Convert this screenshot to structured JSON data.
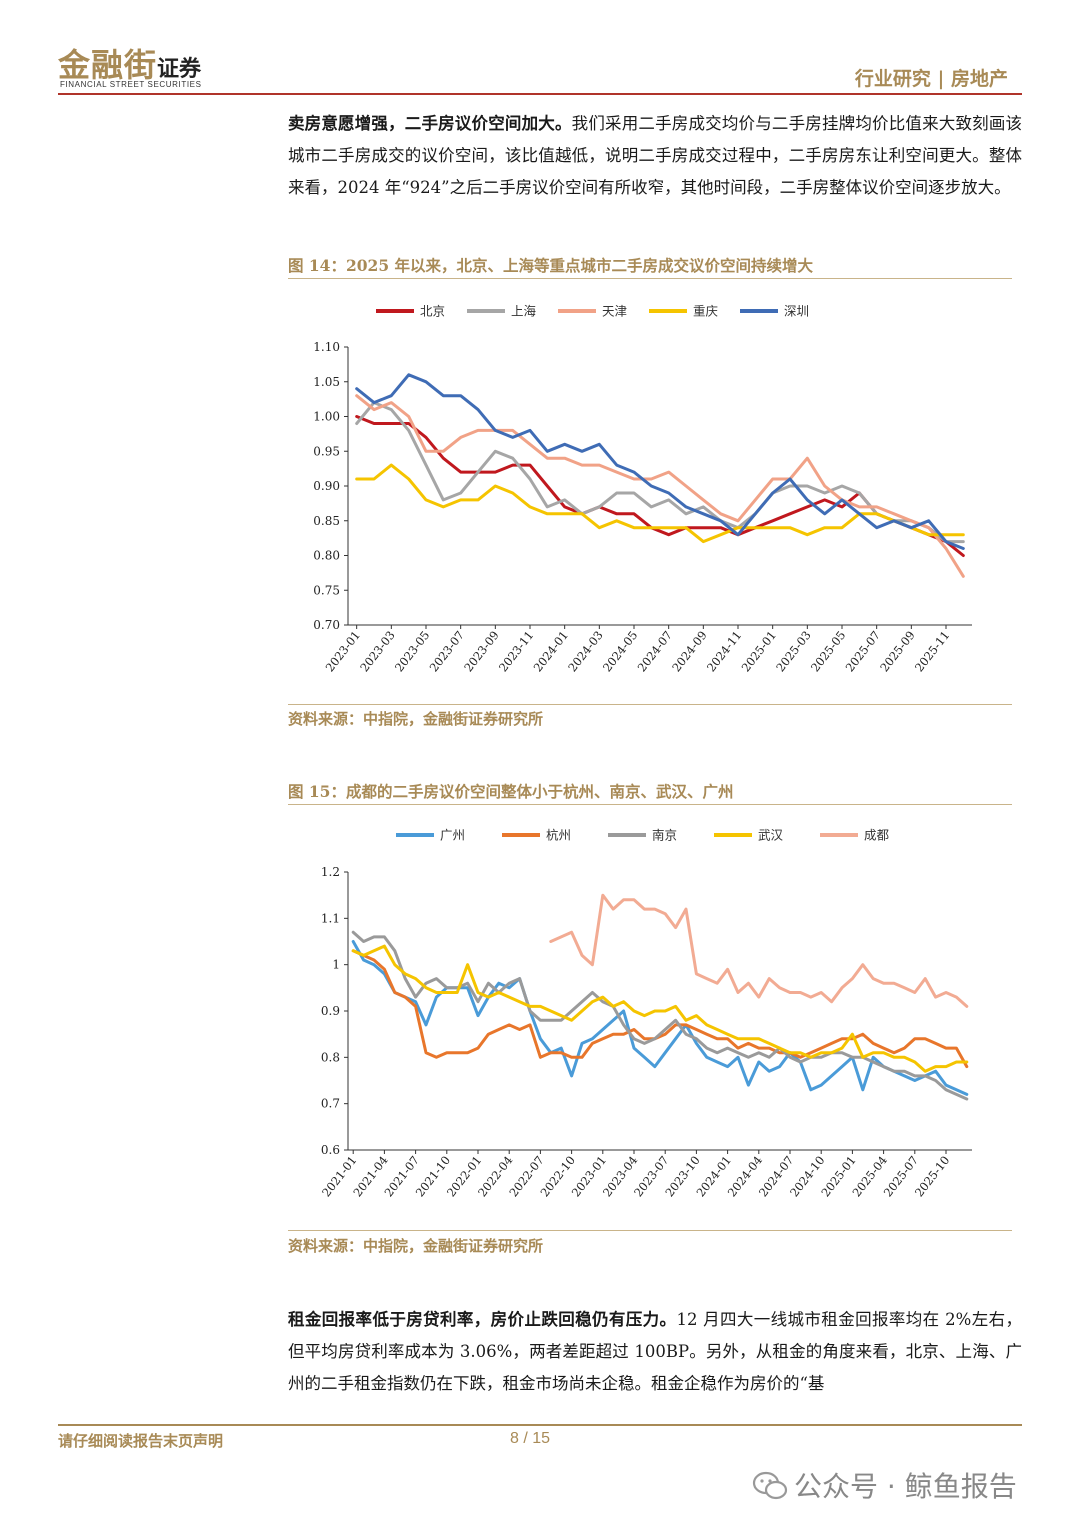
{
  "header": {
    "logo_cn": "金融街",
    "logo_suffix": "证券",
    "logo_en": "FINANCIAL STREET SECURITIES",
    "section": "行业研究 | 房地产"
  },
  "para1": {
    "lead": "卖房意愿增强，二手房议价空间加大。",
    "body": "我们采用二手房成交均价与二手房挂牌均价比值来大致刻画该城市二手房成交的议价空间，该比值越低，说明二手房成交过程中，二手房房东让利空间更大。整体来看，2024 年“924”之后二手房议价空间有所收窄，其他时间段，二手房整体议价空间逐步放大。"
  },
  "fig14": {
    "title": "图 14：2025 年以来，北京、上海等重点城市二手房成交议价空间持续增大",
    "source": "资料来源：中指院，金融街证券研究所"
  },
  "fig15": {
    "title": "图 15：成都的二手房议价空间整体小于杭州、南京、武汉、广州",
    "source": "资料来源：中指院，金融街证券研究所"
  },
  "para2": {
    "lead": "租金回报率低于房贷利率，房价止跌回稳仍有压力。",
    "body": "12 月四大一线城市租金回报率均在 2%左右，但平均房贷利率成本为 3.06%，两者差距超过 100BP。另外，从租金的角度来看，北京、上海、广州的二手租金指数仍在下跌，租金市场尚未企稳。租金企稳作为房价的“基"
  },
  "footer": {
    "disclaimer": "请仔细阅读报告末页声明",
    "page": "8 / 15"
  },
  "watermark": "公众号 · 鲸鱼报告",
  "chart_data": [
    {
      "type": "line",
      "title": "图 14：2025 年以来，北京、上海等重点城市二手房成交议价空间持续增大",
      "xlabel": "",
      "ylabel": "",
      "ylim": [
        0.7,
        1.1
      ],
      "yticks": [
        "1.10",
        "1.05",
        "1.00",
        "0.95",
        "0.90",
        "0.85",
        "0.80",
        "0.75",
        "0.70"
      ],
      "xticks": [
        "2023-01",
        "2023-03",
        "2023-05",
        "2023-07",
        "2023-09",
        "2023-11",
        "2024-01",
        "2024-03",
        "2024-05",
        "2024-07",
        "2024-09",
        "2024-11",
        "2025-01",
        "2025-03",
        "2025-05",
        "2025-07",
        "2025-09",
        "2025-11"
      ],
      "x_period_count": 36,
      "series": [
        {
          "name": "北京",
          "color": "#c0181e",
          "values": [
            1.0,
            0.99,
            0.99,
            0.99,
            0.97,
            0.94,
            0.92,
            0.92,
            0.92,
            0.93,
            0.93,
            0.9,
            0.87,
            0.86,
            0.87,
            0.86,
            0.86,
            0.84,
            0.83,
            0.84,
            0.84,
            0.84,
            0.83,
            0.84,
            0.85,
            0.86,
            0.87,
            0.88,
            0.87,
            0.89,
            0.86,
            0.85,
            0.84,
            0.83,
            0.82,
            0.8
          ]
        },
        {
          "name": "上海",
          "color": "#a6a6a6",
          "values": [
            0.99,
            1.02,
            1.01,
            0.98,
            0.93,
            0.88,
            0.89,
            0.92,
            0.95,
            0.94,
            0.91,
            0.87,
            0.88,
            0.86,
            0.87,
            0.89,
            0.89,
            0.87,
            0.88,
            0.86,
            0.87,
            0.85,
            0.84,
            0.86,
            0.89,
            0.9,
            0.9,
            0.89,
            0.9,
            0.89,
            0.86,
            0.85,
            0.85,
            0.84,
            0.82,
            0.82
          ]
        },
        {
          "name": "天津",
          "color": "#f1a287",
          "values": [
            1.03,
            1.01,
            1.02,
            1.0,
            0.95,
            0.95,
            0.97,
            0.98,
            0.98,
            0.98,
            0.96,
            0.94,
            0.94,
            0.93,
            0.93,
            0.92,
            0.91,
            0.91,
            0.92,
            0.9,
            0.88,
            0.86,
            0.85,
            0.88,
            0.91,
            0.91,
            0.94,
            0.9,
            0.88,
            0.87,
            0.87,
            0.86,
            0.85,
            0.84,
            0.81,
            0.77
          ]
        },
        {
          "name": "重庆",
          "color": "#f5c400",
          "values": [
            0.91,
            0.91,
            0.93,
            0.91,
            0.88,
            0.87,
            0.88,
            0.88,
            0.9,
            0.89,
            0.87,
            0.86,
            0.86,
            0.86,
            0.84,
            0.85,
            0.84,
            0.84,
            0.84,
            0.84,
            0.82,
            0.83,
            0.84,
            0.84,
            0.84,
            0.84,
            0.83,
            0.84,
            0.84,
            0.86,
            0.86,
            0.85,
            0.84,
            0.83,
            0.83,
            0.83
          ]
        },
        {
          "name": "深圳",
          "color": "#3f6cb5",
          "values": [
            1.04,
            1.02,
            1.03,
            1.06,
            1.05,
            1.03,
            1.03,
            1.01,
            0.98,
            0.97,
            0.98,
            0.95,
            0.96,
            0.95,
            0.96,
            0.93,
            0.92,
            0.9,
            0.89,
            0.87,
            0.86,
            0.85,
            0.83,
            0.86,
            0.89,
            0.91,
            0.88,
            0.86,
            0.88,
            0.86,
            0.84,
            0.85,
            0.84,
            0.85,
            0.82,
            0.81
          ]
        }
      ]
    },
    {
      "type": "line",
      "title": "图 15：成都的二手房议价空间整体小于杭州、南京、武汉、广州",
      "xlabel": "",
      "ylabel": "",
      "ylim": [
        0.6,
        1.2
      ],
      "yticks": [
        "1.2",
        "1.1",
        "1",
        "0.9",
        "0.8",
        "0.7",
        "0.6"
      ],
      "xticks": [
        "2021-01",
        "2021-04",
        "2021-07",
        "2021-10",
        "2022-01",
        "2022-04",
        "2022-07",
        "2022-10",
        "2023-01",
        "2023-04",
        "2023-07",
        "2023-10",
        "2024-01",
        "2024-04",
        "2024-07",
        "2024-10",
        "2025-01",
        "2025-04",
        "2025-07",
        "2025-10"
      ],
      "x_period_count": 60,
      "series": [
        {
          "name": "广州",
          "color": "#4a9bd8",
          "values": [
            1.05,
            1.01,
            1.0,
            0.98,
            0.94,
            0.93,
            0.92,
            0.87,
            0.93,
            0.95,
            0.95,
            0.95,
            0.89,
            0.93,
            0.96,
            0.95,
            0.97,
            0.9,
            0.84,
            0.81,
            0.82,
            0.76,
            0.83,
            0.84,
            0.86,
            0.88,
            0.9,
            0.82,
            0.8,
            0.78,
            0.81,
            0.84,
            0.87,
            0.83,
            0.8,
            0.79,
            0.78,
            0.8,
            0.74,
            0.79,
            0.77,
            0.78,
            0.81,
            0.79,
            0.73,
            0.74,
            0.76,
            0.78,
            0.8,
            0.73,
            0.8,
            0.78,
            0.77,
            0.76,
            0.75,
            0.76,
            0.77,
            0.74,
            0.73,
            0.72
          ]
        },
        {
          "name": "杭州",
          "color": "#e8762b",
          "values": [
            1.03,
            1.02,
            1.01,
            0.99,
            0.94,
            0.93,
            0.91,
            0.81,
            0.8,
            0.81,
            0.81,
            0.81,
            0.82,
            0.85,
            0.86,
            0.87,
            0.86,
            0.87,
            0.8,
            0.81,
            0.81,
            0.8,
            0.8,
            0.83,
            0.84,
            0.85,
            0.85,
            0.86,
            0.84,
            0.84,
            0.85,
            0.87,
            0.87,
            0.86,
            0.85,
            0.84,
            0.84,
            0.82,
            0.83,
            0.82,
            0.82,
            0.81,
            0.81,
            0.8,
            0.81,
            0.82,
            0.83,
            0.84,
            0.84,
            0.85,
            0.83,
            0.82,
            0.81,
            0.82,
            0.84,
            0.84,
            0.83,
            0.82,
            0.82,
            0.78
          ]
        },
        {
          "name": "南京",
          "color": "#9a9a9a",
          "values": [
            1.07,
            1.05,
            1.06,
            1.06,
            1.03,
            0.97,
            0.93,
            0.96,
            0.97,
            0.95,
            0.95,
            0.96,
            0.92,
            0.96,
            0.94,
            0.96,
            0.97,
            0.9,
            0.88,
            0.88,
            0.88,
            0.9,
            0.92,
            0.94,
            0.92,
            0.91,
            0.87,
            0.84,
            0.83,
            0.84,
            0.86,
            0.88,
            0.85,
            0.84,
            0.82,
            0.81,
            0.82,
            0.81,
            0.8,
            0.81,
            0.8,
            0.82,
            0.8,
            0.79,
            0.8,
            0.8,
            0.81,
            0.81,
            0.8,
            0.8,
            0.79,
            0.78,
            0.77,
            0.77,
            0.76,
            0.76,
            0.75,
            0.73,
            0.72,
            0.71
          ]
        },
        {
          "name": "武汉",
          "color": "#f5c400",
          "values": [
            1.03,
            1.02,
            1.03,
            1.04,
            1.0,
            0.98,
            0.97,
            0.95,
            0.94,
            0.94,
            0.94,
            1.0,
            0.94,
            0.93,
            0.94,
            0.93,
            0.92,
            0.91,
            0.91,
            0.9,
            0.89,
            0.88,
            0.9,
            0.92,
            0.93,
            0.91,
            0.92,
            0.9,
            0.89,
            0.9,
            0.9,
            0.91,
            0.88,
            0.89,
            0.87,
            0.86,
            0.85,
            0.84,
            0.84,
            0.84,
            0.83,
            0.82,
            0.81,
            0.81,
            0.8,
            0.81,
            0.81,
            0.82,
            0.85,
            0.8,
            0.81,
            0.81,
            0.8,
            0.8,
            0.79,
            0.77,
            0.78,
            0.78,
            0.79,
            0.79
          ]
        },
        {
          "name": "成都",
          "color": "#f2ab93",
          "values": [
            null,
            null,
            null,
            null,
            null,
            null,
            null,
            null,
            null,
            null,
            null,
            null,
            null,
            null,
            null,
            null,
            null,
            null,
            null,
            1.05,
            1.06,
            1.07,
            1.02,
            1.0,
            1.15,
            1.12,
            1.14,
            1.14,
            1.12,
            1.12,
            1.11,
            1.08,
            1.12,
            0.98,
            0.97,
            0.96,
            0.99,
            0.94,
            0.96,
            0.93,
            0.97,
            0.95,
            0.94,
            0.94,
            0.93,
            0.94,
            0.92,
            0.95,
            0.97,
            1.0,
            0.97,
            0.96,
            0.96,
            0.95,
            0.94,
            0.97,
            0.93,
            0.94,
            0.93,
            0.91
          ]
        }
      ]
    }
  ]
}
